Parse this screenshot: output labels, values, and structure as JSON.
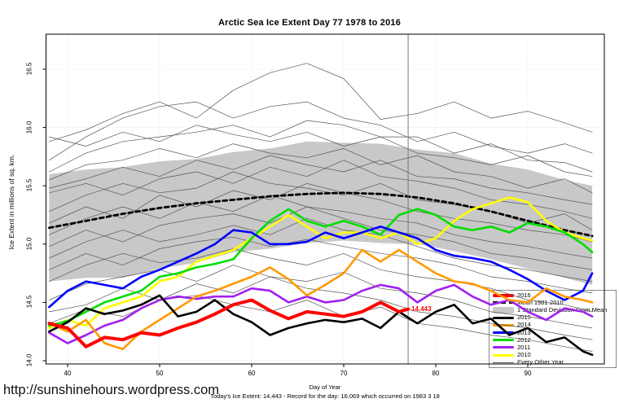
{
  "footer": {
    "url": "http://sunshinehours.wordpress.com",
    "note": "Today's Ice Extent: 14.443  - Record for the day: 16.069 which occurred on 1983 3 18"
  },
  "chart_data": {
    "type": "line",
    "title": "Arctic Sea Ice Extent Day 77 1978 to 2016",
    "xlabel": "Day of Year",
    "ylabel": "Ice Extent in millions of sq. km.",
    "xlim": [
      37.5,
      98.3
    ],
    "ylim": [
      13.96,
      16.78
    ],
    "grid": true,
    "x_ticks": [
      {
        "v": 40,
        "label": "40"
      },
      {
        "v": 50,
        "label": "50"
      },
      {
        "v": 60,
        "label": "60"
      },
      {
        "v": 70,
        "label": "70"
      },
      {
        "v": 80,
        "label": "80"
      },
      {
        "v": 90,
        "label": "90"
      }
    ],
    "y_ticks": [
      {
        "v": 14.0,
        "label": "14.0"
      },
      {
        "v": 14.5,
        "label": "14.5"
      },
      {
        "v": 15.0,
        "label": "15.0"
      },
      {
        "v": 15.5,
        "label": "15.5"
      },
      {
        "v": 16.0,
        "label": "16.0"
      },
      {
        "v": 16.5,
        "label": "16.5"
      }
    ],
    "vline_x": 77,
    "annotation": {
      "text": "14.443",
      "x": 77,
      "y": 14.443,
      "color": "#ff0000"
    },
    "band": {
      "label": "1 Standard Deviation From Mean",
      "color": "#c8c8c8",
      "x": [
        38,
        42,
        46,
        50,
        54,
        58,
        62,
        66,
        70,
        74,
        78,
        82,
        86,
        90,
        94,
        97
      ],
      "upper": [
        15.6,
        15.64,
        15.66,
        15.71,
        15.73,
        15.79,
        15.82,
        15.88,
        15.87,
        15.86,
        15.81,
        15.78,
        15.69,
        15.64,
        15.55,
        15.5
      ],
      "lower": [
        14.68,
        14.71,
        14.71,
        14.79,
        14.84,
        14.93,
        14.96,
        15.01,
        15.03,
        15.01,
        15.0,
        14.94,
        14.87,
        14.79,
        14.71,
        14.65
      ]
    },
    "mean": {
      "label": "Mean 1981-2010",
      "color": "#000000",
      "x": [
        38,
        42,
        46,
        50,
        54,
        58,
        62,
        66,
        70,
        74,
        78,
        82,
        86,
        90,
        94,
        97
      ],
      "y": [
        15.14,
        15.2,
        15.26,
        15.31,
        15.35,
        15.38,
        15.41,
        15.43,
        15.44,
        15.43,
        15.4,
        15.35,
        15.28,
        15.2,
        15.12,
        15.07
      ]
    },
    "series": [
      {
        "name": "2016",
        "color": "#ff0000",
        "width": 4,
        "x": [
          38,
          40,
          42,
          44,
          46,
          48,
          50,
          52,
          54,
          56,
          58,
          60,
          62,
          64,
          66,
          68,
          70,
          72,
          74,
          76,
          77
        ],
        "y": [
          14.32,
          14.28,
          14.12,
          14.2,
          14.18,
          14.24,
          14.22,
          14.28,
          14.33,
          14.4,
          14.48,
          14.52,
          14.43,
          14.36,
          14.42,
          14.4,
          14.38,
          14.42,
          14.5,
          14.42,
          14.443
        ]
      },
      {
        "name": "2015",
        "color": "#000000",
        "width": 2.6,
        "x": [
          38,
          40,
          42,
          44,
          46,
          48,
          50,
          52,
          54,
          56,
          58,
          60,
          62,
          64,
          66,
          68,
          70,
          72,
          74,
          76,
          78,
          80,
          82,
          84,
          86,
          88,
          90,
          92,
          94,
          96,
          97
        ],
        "y": [
          14.25,
          14.33,
          14.45,
          14.4,
          14.43,
          14.48,
          14.56,
          14.38,
          14.42,
          14.52,
          14.4,
          14.33,
          14.22,
          14.28,
          14.32,
          14.35,
          14.33,
          14.36,
          14.28,
          14.42,
          14.32,
          14.42,
          14.48,
          14.32,
          14.36,
          14.22,
          14.28,
          14.16,
          14.2,
          14.08,
          14.05
        ]
      },
      {
        "name": "2014",
        "color": "#ff9900",
        "width": 2.6,
        "x": [
          38,
          40,
          42,
          44,
          46,
          48,
          50,
          52,
          54,
          56,
          58,
          60,
          62,
          64,
          66,
          68,
          70,
          72,
          74,
          76,
          78,
          80,
          82,
          84,
          86,
          88,
          90,
          92,
          94,
          96,
          97
        ],
        "y": [
          14.32,
          14.25,
          14.35,
          14.15,
          14.1,
          14.25,
          14.35,
          14.45,
          14.55,
          14.6,
          14.66,
          14.72,
          14.8,
          14.7,
          14.56,
          14.65,
          14.75,
          14.95,
          14.85,
          14.95,
          14.85,
          14.75,
          14.68,
          14.66,
          14.6,
          14.52,
          14.5,
          14.62,
          14.55,
          14.52,
          14.5
        ]
      },
      {
        "name": "2013",
        "color": "#0000ff",
        "width": 2.6,
        "x": [
          38,
          40,
          42,
          44,
          46,
          48,
          50,
          52,
          54,
          56,
          58,
          60,
          62,
          64,
          66,
          68,
          70,
          72,
          74,
          76,
          78,
          80,
          82,
          84,
          86,
          88,
          90,
          92,
          94,
          96,
          97
        ],
        "y": [
          14.46,
          14.6,
          14.68,
          14.65,
          14.62,
          14.72,
          14.78,
          14.85,
          14.92,
          15.0,
          15.12,
          15.1,
          15.0,
          15.0,
          15.02,
          15.1,
          15.05,
          15.1,
          15.15,
          15.1,
          15.05,
          14.95,
          14.9,
          14.88,
          14.85,
          14.78,
          14.7,
          14.6,
          14.52,
          14.6,
          14.75
        ]
      },
      {
        "name": "2012",
        "color": "#00dd00",
        "width": 2.6,
        "x": [
          38,
          40,
          42,
          44,
          46,
          48,
          50,
          52,
          54,
          56,
          58,
          60,
          62,
          64,
          66,
          68,
          70,
          72,
          74,
          76,
          78,
          80,
          82,
          84,
          86,
          88,
          90,
          92,
          94,
          96,
          97
        ],
        "y": [
          14.3,
          14.34,
          14.42,
          14.5,
          14.55,
          14.6,
          14.72,
          14.75,
          14.8,
          14.83,
          14.87,
          15.05,
          15.2,
          15.3,
          15.2,
          15.15,
          15.2,
          15.15,
          15.08,
          15.25,
          15.3,
          15.25,
          15.15,
          15.12,
          15.15,
          15.1,
          15.18,
          15.15,
          15.1,
          15.0,
          14.93
        ]
      },
      {
        "name": "2011",
        "color": "#a020f0",
        "width": 2.6,
        "x": [
          38,
          40,
          42,
          44,
          46,
          48,
          50,
          52,
          54,
          56,
          58,
          60,
          62,
          64,
          66,
          68,
          70,
          72,
          74,
          76,
          78,
          80,
          82,
          84,
          86,
          88,
          90,
          92,
          94,
          96,
          97
        ],
        "y": [
          14.24,
          14.15,
          14.22,
          14.3,
          14.35,
          14.45,
          14.52,
          14.55,
          14.53,
          14.55,
          14.55,
          14.62,
          14.6,
          14.5,
          14.55,
          14.5,
          14.52,
          14.6,
          14.65,
          14.62,
          14.5,
          14.6,
          14.65,
          14.55,
          14.48,
          14.52,
          14.42,
          14.35,
          14.45,
          14.42,
          14.38
        ]
      },
      {
        "name": "2010",
        "color": "#ffff00",
        "width": 2.6,
        "x": [
          38,
          40,
          42,
          44,
          46,
          48,
          50,
          52,
          54,
          56,
          58,
          60,
          62,
          64,
          66,
          68,
          70,
          72,
          74,
          76,
          78,
          80,
          82,
          84,
          86,
          88,
          90,
          92,
          94,
          96,
          97
        ],
        "y": [
          14.28,
          14.35,
          14.3,
          14.45,
          14.5,
          14.55,
          14.68,
          14.72,
          14.85,
          14.9,
          14.95,
          15.05,
          15.15,
          15.25,
          15.15,
          15.05,
          15.1,
          15.1,
          15.05,
          15.1,
          15.0,
          15.05,
          15.2,
          15.3,
          15.35,
          15.4,
          15.36,
          15.2,
          15.1,
          15.05,
          15.03
        ]
      }
    ],
    "every_other_year": {
      "label": "Every Other Year",
      "color": "#555555",
      "x": [
        38,
        42,
        46,
        50,
        54,
        58,
        62,
        66,
        70,
        74,
        78,
        82,
        86,
        90,
        94,
        97
      ],
      "lines": [
        [
          15.88,
          15.98,
          16.12,
          16.22,
          16.08,
          16.32,
          16.47,
          16.55,
          16.42,
          16.07,
          16.12,
          16.22,
          16.08,
          16.14,
          16.04,
          15.96
        ],
        [
          15.72,
          15.92,
          16.08,
          16.18,
          16.22,
          16.08,
          16.18,
          16.22,
          16.08,
          16.02,
          15.88,
          15.96,
          15.84,
          15.78,
          15.86,
          15.78
        ],
        [
          15.62,
          15.78,
          15.88,
          15.92,
          15.96,
          16.02,
          15.92,
          16.06,
          16.02,
          15.92,
          15.92,
          15.78,
          15.86,
          15.72,
          15.7,
          15.62
        ],
        [
          15.92,
          15.84,
          15.96,
          15.88,
          16.02,
          15.94,
          15.88,
          15.96,
          15.84,
          15.92,
          15.78,
          15.74,
          15.68,
          15.76,
          15.62,
          15.58
        ],
        [
          15.55,
          15.68,
          15.72,
          15.82,
          15.74,
          15.86,
          15.78,
          15.74,
          15.82,
          15.68,
          15.76,
          15.62,
          15.58,
          15.48,
          15.56,
          15.44
        ],
        [
          15.48,
          15.56,
          15.66,
          15.58,
          15.72,
          15.64,
          15.76,
          15.68,
          15.62,
          15.72,
          15.58,
          15.56,
          15.48,
          15.44,
          15.38,
          15.34
        ],
        [
          15.44,
          15.52,
          15.42,
          15.56,
          15.62,
          15.52,
          15.66,
          15.58,
          15.72,
          15.58,
          15.54,
          15.48,
          15.38,
          15.34,
          15.28,
          15.22
        ],
        [
          15.28,
          15.42,
          15.52,
          15.44,
          15.48,
          15.62,
          15.52,
          15.48,
          15.42,
          15.52,
          15.38,
          15.34,
          15.28,
          15.18,
          15.26,
          15.12
        ],
        [
          15.18,
          15.32,
          15.22,
          15.42,
          15.32,
          15.46,
          15.38,
          15.52,
          15.44,
          15.38,
          15.28,
          15.22,
          15.18,
          15.12,
          15.08,
          15.02
        ],
        [
          15.08,
          15.22,
          15.32,
          15.22,
          15.36,
          15.28,
          15.42,
          15.32,
          15.28,
          15.22,
          15.18,
          15.08,
          15.02,
          14.98,
          14.92,
          14.88
        ],
        [
          14.98,
          15.12,
          15.02,
          15.16,
          15.22,
          15.26,
          15.18,
          15.32,
          15.22,
          15.12,
          15.08,
          15.02,
          14.92,
          14.88,
          14.82,
          14.78
        ],
        [
          14.88,
          15.02,
          15.12,
          15.02,
          15.08,
          15.16,
          15.08,
          15.22,
          15.12,
          15.08,
          14.98,
          14.88,
          14.82,
          14.78,
          14.72,
          14.68
        ],
        [
          14.78,
          14.92,
          14.82,
          14.96,
          15.02,
          15.06,
          14.98,
          15.04,
          14.98,
          14.92,
          14.88,
          14.82,
          14.72,
          14.68,
          14.62,
          14.58
        ],
        [
          14.68,
          14.82,
          14.92,
          14.84,
          14.88,
          14.96,
          14.88,
          14.82,
          14.92,
          14.78,
          14.72,
          14.68,
          14.62,
          14.52,
          14.48,
          14.42
        ],
        [
          14.52,
          14.66,
          14.72,
          14.78,
          14.68,
          14.82,
          14.72,
          14.68,
          14.76,
          14.62,
          14.58,
          14.52,
          14.42,
          14.38,
          14.32,
          14.28
        ],
        [
          14.42,
          14.48,
          14.62,
          14.52,
          14.66,
          14.58,
          14.72,
          14.62,
          14.58,
          14.52,
          14.42,
          14.38,
          14.32,
          14.28,
          14.22,
          14.18
        ],
        [
          14.32,
          14.44,
          14.38,
          14.52,
          14.56,
          14.48,
          14.42,
          14.52,
          14.38,
          14.46,
          14.32,
          14.28,
          14.22,
          14.18,
          14.12,
          14.08
        ]
      ]
    },
    "legend": [
      {
        "label": "2016",
        "swatch": "line",
        "color": "#ff0000",
        "thick": 4
      },
      {
        "label": "Mean 1981-2010",
        "swatch": "dashed",
        "color": "#000000",
        "thick": 3
      },
      {
        "label": "1 Standard Deviation From Mean",
        "swatch": "patch",
        "color": "#c8c8c8",
        "thick": 8
      },
      {
        "label": "2015",
        "swatch": "line",
        "color": "#000000",
        "thick": 3
      },
      {
        "label": "2014",
        "swatch": "line",
        "color": "#ff9900",
        "thick": 3
      },
      {
        "label": "2013",
        "swatch": "line",
        "color": "#0000ff",
        "thick": 3
      },
      {
        "label": "2012",
        "swatch": "line",
        "color": "#00dd00",
        "thick": 3
      },
      {
        "label": "2011",
        "swatch": "line",
        "color": "#a020f0",
        "thick": 3
      },
      {
        "label": "2010",
        "swatch": "line",
        "color": "#ffff00",
        "thick": 3
      },
      {
        "label": "Every Other Year",
        "swatch": "thinline",
        "color": "#555555",
        "thick": 1
      }
    ]
  }
}
